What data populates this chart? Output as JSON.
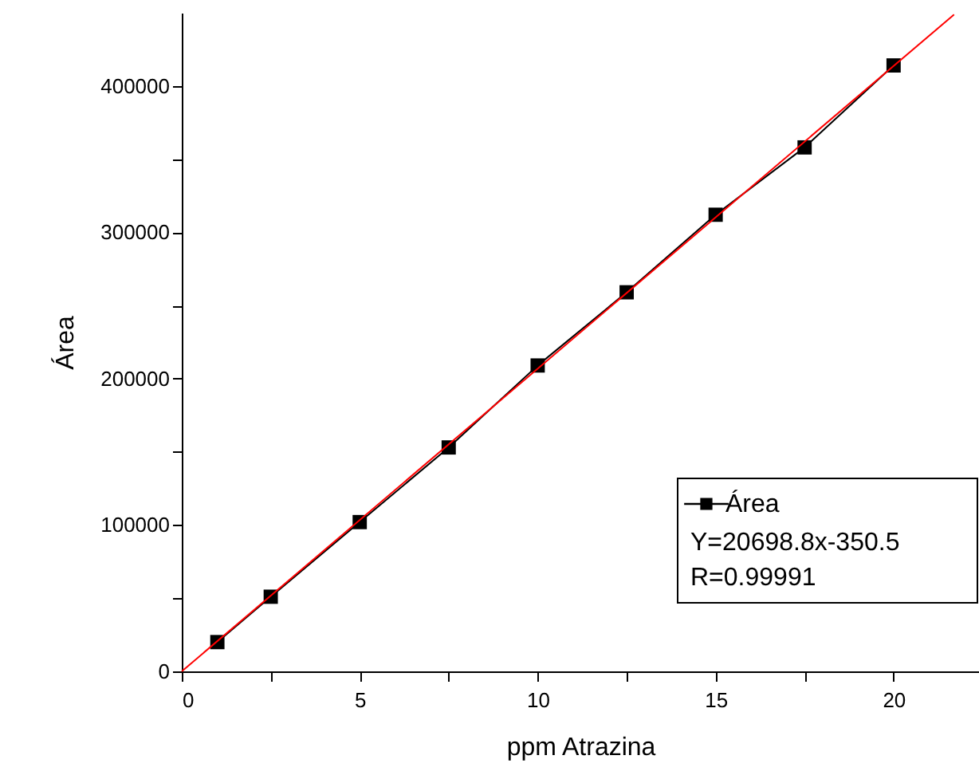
{
  "chart_data": {
    "type": "line",
    "xlabel": "ppm Atrazina",
    "ylabel": "Área",
    "x": [
      1,
      2.5,
      5,
      7.5,
      10,
      12.5,
      15,
      17.5,
      20
    ],
    "series": [
      {
        "name": "Área",
        "color": "#000000",
        "marker": "square",
        "values": [
          20000,
          51000,
          102000,
          153000,
          209000,
          259000,
          312000,
          358000,
          414000
        ]
      },
      {
        "type": "line",
        "color": "#ff0000",
        "marker": "none",
        "x": [
          0,
          21.7
        ],
        "values": [
          0,
          448800
        ]
      }
    ],
    "xlim": [
      0,
      22.4
    ],
    "xticks": [
      0,
      {
        "value": 2.5,
        "label": null
      },
      5,
      {
        "value": 7.5,
        "label": null
      },
      10,
      {
        "value": 12.5,
        "label": null
      },
      15,
      {
        "value": 17.5,
        "label": null
      },
      20
    ],
    "ylim": [
      0,
      450000
    ],
    "yticks": [
      0,
      {
        "value": 50000,
        "label": null
      },
      100000,
      {
        "value": 150000,
        "label": null
      },
      200000,
      {
        "value": 250000,
        "label": null
      },
      300000,
      {
        "value": 350000,
        "label": null
      },
      400000
    ],
    "grid": false,
    "legend": "bottom right",
    "annotations": [
      "Y=20698.8x-350.5",
      "R=0.99991"
    ]
  }
}
